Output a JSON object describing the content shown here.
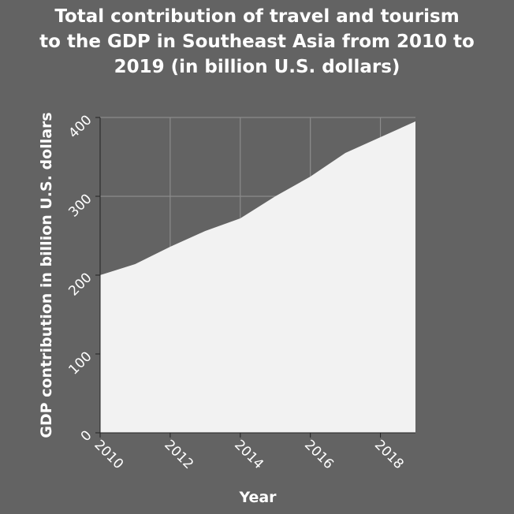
{
  "chart_data": {
    "type": "area",
    "title_lines": [
      "Total contribution of travel and tourism",
      "to the GDP in Southeast Asia from 2010 to",
      "2019 (in billion U.S. dollars)"
    ],
    "xlabel": "Year",
    "ylabel": "GDP contribution in billion U.S. dollars",
    "x": [
      2010,
      2011,
      2012,
      2013,
      2014,
      2015,
      2016,
      2017,
      2018,
      2019
    ],
    "values": [
      200,
      214,
      236,
      256,
      272,
      300,
      325,
      355,
      375,
      395
    ],
    "xlim": [
      2010,
      2019
    ],
    "ylim": [
      0,
      400
    ],
    "xticks": [
      2010,
      2012,
      2014,
      2016,
      2018
    ],
    "yticks": [
      0,
      100,
      200,
      300,
      400
    ],
    "grid": true,
    "colors": {
      "background": "#636363",
      "area": "#f2f2f2",
      "grid": "#8c8c8c",
      "text": "#ffffff"
    }
  }
}
